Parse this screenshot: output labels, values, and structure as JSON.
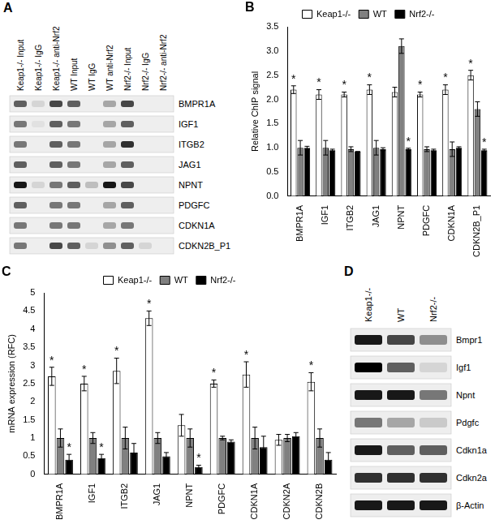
{
  "gels": [
    {
      "panel_label": "A",
      "columns": [
        "Keap1-/- Input",
        "Keap1-/- IgG",
        "Keap1-/- anti-Nrf2",
        "WT Input",
        "WT IgG",
        "WT anti-Nrf2",
        "Nrf2-/- Input",
        "Nrf2-/- IgG",
        "Nrf2-/- anti-Nrf2"
      ],
      "rows": [
        "BMPR1A",
        "IGF1",
        "ITGB2",
        "JAG1",
        "NPNT",
        "PDGFC",
        "CDKN1A",
        "CDKN2B_P1"
      ],
      "band_intensity": [
        [
          0.6,
          0.1,
          0.7,
          0.6,
          0,
          0.3,
          0.7,
          0,
          0
        ],
        [
          0.5,
          0.05,
          0.6,
          0.5,
          0,
          0.3,
          0.6,
          0,
          0
        ],
        [
          0.5,
          0,
          0.6,
          0.5,
          0,
          0.3,
          0.8,
          0,
          0
        ],
        [
          0.6,
          0,
          0.6,
          0.5,
          0,
          0.3,
          0.6,
          0,
          0
        ],
        [
          0.9,
          0.1,
          0.5,
          0.6,
          0.2,
          0.9,
          0.7,
          0,
          0
        ],
        [
          0.6,
          0,
          0.5,
          0.5,
          0,
          0.3,
          0.6,
          0,
          0
        ],
        [
          0.5,
          0,
          0.5,
          0.5,
          0,
          0.3,
          0.5,
          0,
          0
        ],
        [
          0.5,
          0,
          0.7,
          0.6,
          0.1,
          0.4,
          0.6,
          0.1,
          0
        ]
      ]
    },
    {
      "panel_label": "D",
      "columns": [
        "Keap1-/-",
        "WT",
        "Nrf2-/-"
      ],
      "rows": [
        "Bmpr1",
        "Igf1",
        "Npnt",
        "Pdgfc",
        "Cdkn1a",
        "Cdkn2a",
        "β-Actin"
      ],
      "band_intensity": [
        [
          0.9,
          0.7,
          0.4
        ],
        [
          1.0,
          0.6,
          0.1
        ],
        [
          0.9,
          0.9,
          0.5
        ],
        [
          0.5,
          0.3,
          0.15
        ],
        [
          0.9,
          0.6,
          0.6
        ],
        [
          0.8,
          0.8,
          0.8
        ],
        [
          0.9,
          0.9,
          0.9
        ]
      ]
    }
  ],
  "chart_data": [
    {
      "panel_label": "B",
      "type": "bar",
      "y_label": "Relative ChIP signal",
      "categories": [
        "BMPR1A",
        "IGF1",
        "ITGB2",
        "JAG1",
        "NPNT",
        "PDGFC",
        "CDKN1A",
        "CDKN2B_P1"
      ],
      "series": [
        {
          "name": "Keap1-/-",
          "color": "#ffffff",
          "values": [
            2.2,
            2.1,
            2.1,
            2.2,
            2.15,
            2.1,
            2.2,
            2.5
          ],
          "errors": [
            0.08,
            0.1,
            0.05,
            0.1,
            0.1,
            0.05,
            0.1,
            0.1
          ],
          "annotations": [
            "*",
            "*",
            "*",
            "*",
            null,
            "*",
            "*",
            "*"
          ]
        },
        {
          "name": "WT",
          "color": "#808080",
          "values": [
            1.0,
            1.0,
            0.97,
            1.0,
            3.1,
            0.97,
            0.97,
            1.8
          ],
          "errors": [
            0.15,
            0.15,
            0.05,
            0.15,
            0.15,
            0.05,
            0.15,
            0.15
          ],
          "annotations": [
            null,
            null,
            null,
            null,
            null,
            null,
            null,
            null
          ]
        },
        {
          "name": "Nrf2-/-",
          "color": "#000000",
          "values": [
            1.0,
            0.95,
            0.92,
            0.97,
            0.97,
            0.95,
            1.0,
            0.95
          ],
          "errors": [
            0.03,
            0.02,
            0,
            0.03,
            0.02,
            0.02,
            0.02,
            0.02
          ],
          "annotations": [
            null,
            null,
            null,
            null,
            "*",
            null,
            null,
            "*"
          ]
        }
      ],
      "ylim": [
        0,
        3.5
      ],
      "yticks": [
        {
          "value": 0,
          "label": "0.0"
        },
        {
          "value": 0.5,
          "label": "0.5"
        },
        {
          "value": 1,
          "label": "1.0"
        },
        {
          "value": 1.5,
          "label": "1.5"
        },
        {
          "value": 2,
          "label": "2.0"
        },
        {
          "value": 2.5,
          "label": "2.5"
        },
        {
          "value": 3,
          "label": "3.0"
        },
        {
          "value": 3.5,
          "label": "3.5"
        }
      ],
      "grid": false,
      "legend": "top"
    },
    {
      "panel_label": "C",
      "type": "bar",
      "y_label": "mRNA expression (RFC)",
      "categories": [
        "BMPR1A",
        "IGF1",
        "ITGB2",
        "JAG1",
        "NPNT",
        "PDGFC",
        "CDKN1A",
        "CDKN2A",
        "CDKN2B"
      ],
      "series": [
        {
          "name": "Keap1-/-",
          "color": "#ffffff",
          "values": [
            2.7,
            2.5,
            2.85,
            4.3,
            1.35,
            2.5,
            2.75,
            0.95,
            2.55
          ],
          "errors": [
            0.25,
            0.2,
            0.35,
            0.2,
            0.3,
            0.1,
            0.35,
            0.15,
            0.25
          ],
          "annotations": [
            "*",
            "*",
            "*",
            "*",
            null,
            "*",
            "*",
            null,
            "*"
          ]
        },
        {
          "name": "WT",
          "color": "#808080",
          "values": [
            1,
            1,
            1,
            1,
            1,
            1,
            1,
            1,
            1
          ],
          "errors": [
            0.25,
            0.15,
            0.3,
            0.15,
            0.25,
            0.05,
            0.3,
            0.1,
            0.25
          ],
          "annotations": [
            null,
            null,
            null,
            null,
            null,
            null,
            null,
            null,
            null
          ]
        },
        {
          "name": "Nrf2-/-",
          "color": "#000000",
          "values": [
            0.4,
            0.45,
            0.6,
            0.5,
            0.2,
            0.9,
            0.75,
            1.05,
            0.4
          ],
          "errors": [
            0.15,
            0.1,
            0.25,
            0.1,
            0.05,
            0.05,
            0.3,
            0.1,
            0.2
          ],
          "annotations": [
            "*",
            "*",
            null,
            null,
            "*",
            null,
            null,
            null,
            null
          ]
        }
      ],
      "ylim": [
        0,
        5
      ],
      "yticks": [
        0,
        0.5,
        1,
        1.5,
        2,
        2.5,
        3,
        3.5,
        4,
        4.5,
        5
      ],
      "grid": false,
      "legend": "top"
    }
  ]
}
